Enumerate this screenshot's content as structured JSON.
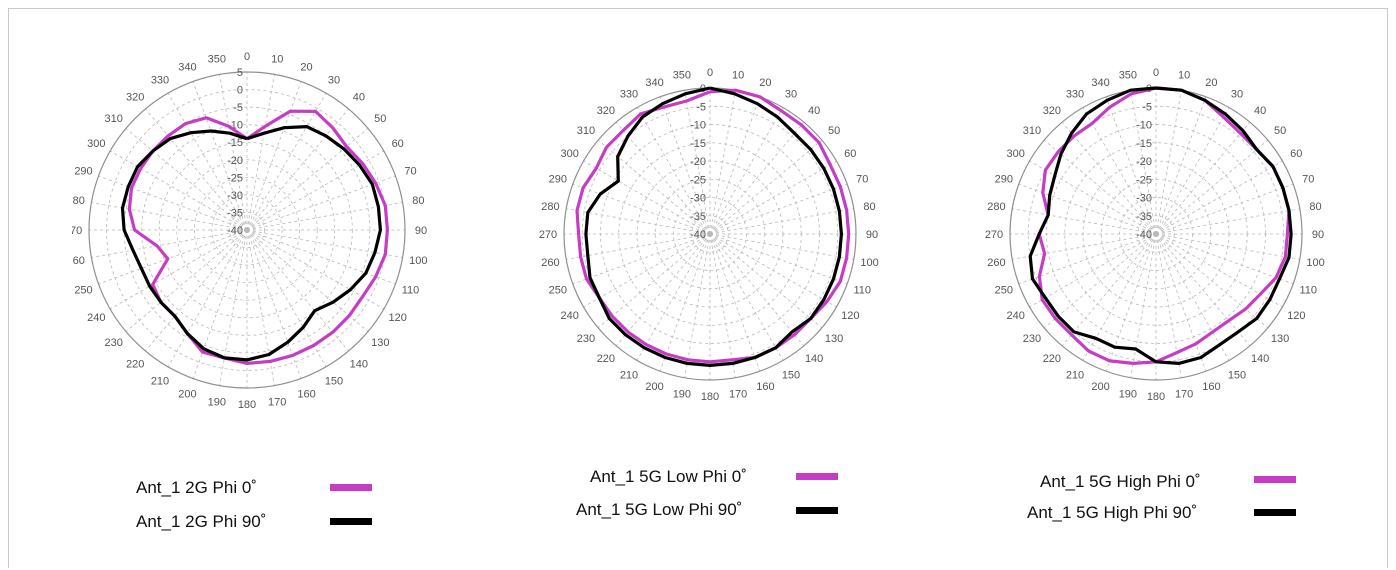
{
  "colors": {
    "phi0": "#c63cc6",
    "phi90": "#000000",
    "grid": "#b9b9b9",
    "tick": "#555555"
  },
  "chart_data": [
    {
      "type": "polar",
      "r_ticks": [
        5,
        0,
        -5,
        -10,
        -15,
        -20,
        -25,
        -30,
        -35,
        -40
      ],
      "rlim": [
        -40,
        5
      ],
      "angle_ticks": [
        "0",
        "10",
        "20",
        "30",
        "40",
        "50",
        "60",
        "70",
        "80",
        "90",
        "100",
        "110",
        "120",
        "130",
        "140",
        "150",
        "160",
        "170",
        "180",
        "190",
        "200",
        "210",
        "220",
        "230",
        "240",
        "250",
        "260",
        "270",
        "280",
        "290",
        "300",
        "310",
        "320",
        "330",
        "340",
        "350"
      ],
      "grid": true,
      "series": [
        {
          "name": "Ant_1 2G Phi 0˚",
          "color": "#c63cc6",
          "theta": [
            0,
            10,
            20,
            30,
            40,
            50,
            60,
            70,
            80,
            90,
            100,
            110,
            120,
            130,
            140,
            150,
            160,
            170,
            180,
            190,
            200,
            210,
            220,
            230,
            240,
            250,
            260,
            270,
            280,
            290,
            300,
            310,
            320,
            330,
            340,
            350
          ],
          "r": [
            -14,
            -10,
            -4,
            -1,
            -2,
            -3,
            -2,
            -1,
            0,
            0,
            0,
            -1,
            -2,
            -2,
            -2,
            -2,
            -2,
            -2,
            -2,
            -3,
            -3,
            -6,
            -8,
            -8,
            -9,
            -16,
            -14,
            -8,
            -6,
            -5,
            -5,
            -5,
            -5,
            -5,
            -6,
            -10
          ]
        },
        {
          "name": "Ant_1 2G Phi 90˚",
          "color": "#000000",
          "theta": [
            0,
            10,
            20,
            30,
            40,
            50,
            60,
            70,
            80,
            90,
            100,
            110,
            120,
            130,
            140,
            150,
            160,
            170,
            180,
            190,
            200,
            210,
            220,
            230,
            240,
            250,
            260,
            270,
            280,
            290,
            300,
            310,
            320,
            330,
            340,
            350
          ],
          "r": [
            -14,
            -12,
            -9,
            -6,
            -5,
            -4,
            -3,
            -2,
            -2,
            -2,
            -3,
            -4,
            -6,
            -8,
            -10,
            -8,
            -6,
            -4,
            -3,
            -3,
            -4,
            -6,
            -8,
            -8,
            -8,
            -8,
            -7,
            -5,
            -4,
            -4,
            -4,
            -5,
            -6,
            -8,
            -10,
            -12
          ]
        }
      ],
      "legend": [
        {
          "label": "Ant_1 2G Phi 0˚",
          "color": "#c63cc6"
        },
        {
          "label": "Ant_1 2G Phi 90˚",
          "color": "#000000"
        }
      ]
    },
    {
      "type": "polar",
      "r_ticks": [
        0,
        -5,
        -10,
        -15,
        -20,
        -25,
        -30,
        -35,
        -40
      ],
      "rlim": [
        -40,
        0
      ],
      "angle_ticks": [
        "0",
        "10",
        "20",
        "30",
        "40",
        "50",
        "60",
        "70",
        "80",
        "90",
        "100",
        "110",
        "120",
        "130",
        "140",
        "150",
        "160",
        "170",
        "180",
        "190",
        "200",
        "210",
        "220",
        "230",
        "240",
        "250",
        "260",
        "270",
        "280",
        "290",
        "300",
        "310",
        "320",
        "330",
        "340",
        "350"
      ],
      "grid": true,
      "series": [
        {
          "name": "Ant_1 5G Low Phi 0˚",
          "color": "#c63cc6",
          "theta": [
            0,
            10,
            20,
            30,
            40,
            50,
            60,
            70,
            80,
            90,
            100,
            110,
            120,
            130,
            140,
            150,
            160,
            170,
            180,
            190,
            200,
            210,
            220,
            230,
            240,
            250,
            260,
            270,
            280,
            290,
            300,
            310,
            320,
            330,
            340,
            350
          ],
          "r": [
            -1,
            0,
            0,
            -1,
            -1,
            -1,
            -2,
            -2,
            -2,
            -2,
            -2,
            -2,
            -3,
            -4,
            -4,
            -4,
            -4,
            -5,
            -5,
            -5,
            -5,
            -5,
            -5,
            -5,
            -5,
            -4,
            -4,
            -4,
            -3,
            -3,
            -4,
            -3,
            -3,
            -2,
            -3,
            -3
          ]
        },
        {
          "name": "Ant_1 5G Low Phi 90˚",
          "color": "#000000",
          "theta": [
            0,
            10,
            20,
            30,
            40,
            50,
            60,
            70,
            80,
            90,
            100,
            110,
            120,
            130,
            140,
            150,
            160,
            170,
            180,
            190,
            200,
            210,
            220,
            230,
            240,
            250,
            260,
            270,
            280,
            290,
            300,
            310,
            320,
            330,
            340,
            350
          ],
          "r": [
            0,
            -1,
            -2,
            -3,
            -4,
            -4,
            -4,
            -4,
            -4,
            -4,
            -4,
            -4,
            -4,
            -4,
            -5,
            -4,
            -4,
            -4,
            -4,
            -4,
            -4,
            -4,
            -4,
            -4,
            -5,
            -5,
            -6,
            -6,
            -6,
            -8,
            -11,
            -7,
            -5,
            -3,
            -2,
            -1
          ]
        }
      ],
      "legend": [
        {
          "label": "Ant_1 5G Low Phi 0˚",
          "color": "#c63cc6"
        },
        {
          "label": "Ant_1 5G Low Phi 90˚",
          "color": "#000000"
        }
      ]
    },
    {
      "type": "polar",
      "r_ticks": [
        0,
        -5,
        -10,
        -15,
        -20,
        -25,
        -30,
        -35,
        -40
      ],
      "rlim": [
        -40,
        0
      ],
      "angle_ticks": [
        "0",
        "10",
        "20",
        "30",
        "40",
        "50",
        "60",
        "70",
        "80",
        "90",
        "100",
        "110",
        "120",
        "130",
        "140",
        "150",
        "160",
        "170",
        "180",
        "190",
        "200",
        "210",
        "220",
        "230",
        "240",
        "250",
        "260",
        "270",
        "280",
        "290",
        "300",
        "310",
        "320",
        "330",
        "340",
        "350"
      ],
      "grid": true,
      "series": [
        {
          "name": "Ant_1 5G High Phi 0˚",
          "color": "#c63cc6",
          "theta": [
            0,
            10,
            20,
            30,
            40,
            50,
            60,
            70,
            80,
            90,
            100,
            110,
            120,
            130,
            140,
            150,
            160,
            170,
            180,
            190,
            200,
            210,
            220,
            230,
            240,
            250,
            260,
            270,
            280,
            290,
            300,
            310,
            320,
            330,
            340,
            350
          ],
          "r": [
            0,
            0,
            -1,
            -3,
            -4,
            -4,
            -3,
            -3,
            -3,
            -4,
            -4,
            -5,
            -7,
            -8,
            -9,
            -9,
            -8,
            -7,
            -5,
            -4,
            -3,
            -3,
            -4,
            -4,
            -4,
            -6,
            -9,
            -8,
            -10,
            -7,
            -5,
            -5,
            -5,
            -5,
            -3,
            -1
          ]
        },
        {
          "name": "Ant_1 5G High Phi 90˚",
          "color": "#000000",
          "theta": [
            0,
            10,
            20,
            30,
            40,
            50,
            60,
            70,
            80,
            90,
            100,
            110,
            120,
            130,
            140,
            150,
            160,
            170,
            180,
            190,
            200,
            210,
            220,
            230,
            240,
            250,
            260,
            270,
            280,
            290,
            300,
            310,
            320,
            330,
            340,
            350
          ],
          "r": [
            0,
            0,
            -1,
            -2,
            -3,
            -4,
            -3,
            -3,
            -3,
            -3,
            -3,
            -4,
            -4,
            -4,
            -5,
            -5,
            -4,
            -4,
            -5,
            -8,
            -7,
            -7,
            -5,
            -5,
            -5,
            -4,
            -5,
            -8,
            -10,
            -9,
            -8,
            -6,
            -4,
            -2,
            -1,
            0
          ]
        }
      ],
      "legend": [
        {
          "label": "Ant_1 5G High Phi 0˚",
          "color": "#c63cc6"
        },
        {
          "label": "Ant_1 5G High Phi 90˚",
          "color": "#000000"
        }
      ]
    }
  ]
}
